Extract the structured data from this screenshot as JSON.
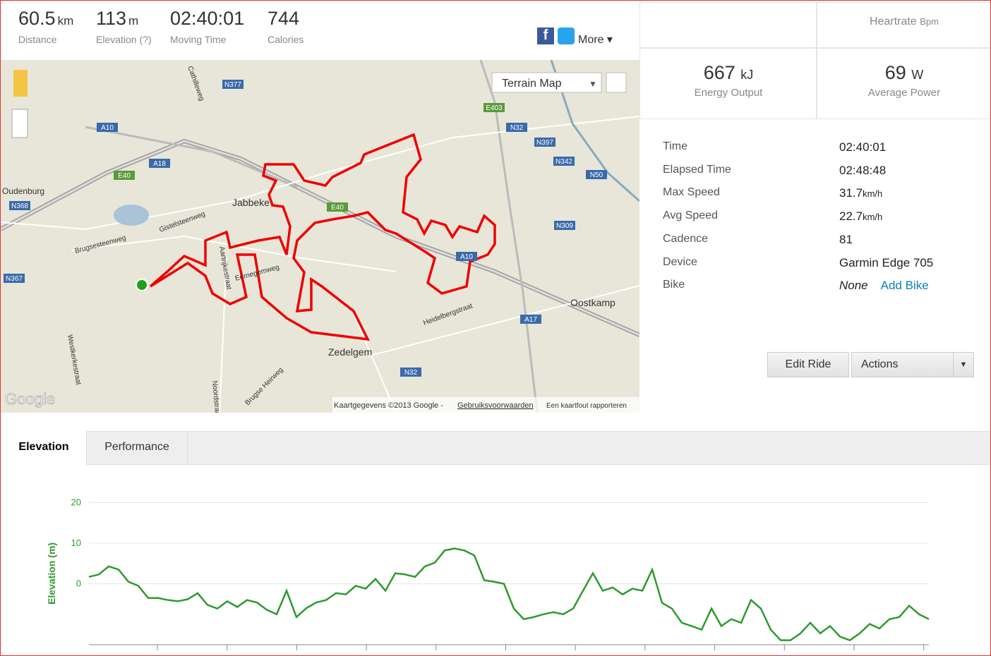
{
  "header": {
    "stats": [
      {
        "value": "60.5",
        "unit": "km",
        "label": "Distance"
      },
      {
        "value": "113",
        "unit": "m",
        "label": "Elevation (?)"
      },
      {
        "value": "02:40:01",
        "label": "Moving Time"
      },
      {
        "value": "744",
        "label": "Calories"
      }
    ],
    "share": "More"
  },
  "summary": {
    "heartrate": {
      "label": "Heartrate",
      "unit": "Bpm"
    },
    "energy": {
      "value": "667",
      "unit": "kJ",
      "label": "Energy Output"
    },
    "power": {
      "value": "69",
      "unit": "W",
      "label": "Average Power"
    }
  },
  "details": [
    {
      "label": "Time",
      "value": "02:40:01"
    },
    {
      "label": "Elapsed Time",
      "value": "02:48:48"
    },
    {
      "label": "Max Speed",
      "value": "31.7",
      "unit": "km/h"
    },
    {
      "label": "Avg Speed",
      "value": "22.7",
      "unit": "km/h"
    },
    {
      "label": "Cadence",
      "value": "81"
    },
    {
      "label": "Device",
      "value": "Garmin Edge 705"
    },
    {
      "label": "Bike",
      "value": "None",
      "link": "Add Bike"
    }
  ],
  "buttons": {
    "edit": "Edit Ride",
    "actions": "Actions"
  },
  "map": {
    "type_selector": "Terrain Map",
    "labels": [
      "Oudenburg",
      "N368",
      "N367",
      "A10",
      "E40",
      "A18",
      "N377",
      "Cathilleweg",
      "Jabbeke",
      "Gistelsteenweg",
      "Brugsesteenweg",
      "Aartrijkestraat",
      "Eernegemweg",
      "Zedelgem",
      "N32",
      "Heidelbergstraat",
      "A17",
      "E403",
      "Oostkamp",
      "N50",
      "N309",
      "N397",
      "N342",
      "Westkerkestraat",
      "Noordstraat",
      "Brugse Heirweg",
      "A10",
      "E40",
      "N32"
    ],
    "attribution": "Kaartgegevens ©2013 Google -",
    "terms": "Gebruiksvoorwaarden",
    "report": "Een kaartfout rapporteren",
    "logo": "Google"
  },
  "tabs": [
    "Elevation",
    "Performance"
  ],
  "chart_data": {
    "type": "line",
    "y_label": "Elevation (m)",
    "color": "#2e9a2e",
    "ylim": [
      -15,
      22
    ],
    "yticks": [
      0,
      10,
      20
    ],
    "grid": true,
    "values": [
      1.7,
      2.3,
      4.3,
      3.5,
      0.5,
      -0.5,
      -3.5,
      -3.5,
      -4,
      -4.3,
      -3.8,
      -2.3,
      -5.2,
      -6.1,
      -4.3,
      -5.7,
      -4,
      -4.6,
      -6.4,
      -7.5,
      -1.7,
      -8.2,
      -6,
      -4.6,
      -4,
      -2.3,
      -2.6,
      -0.5,
      -1.2,
      1.2,
      -1.7,
      2.6,
      2.3,
      1.7,
      4.3,
      5.2,
      8.2,
      8.7,
      8.2,
      7,
      0.9,
      0.5,
      0,
      -6.1,
      -8.7,
      -8.2,
      -7.5,
      -7,
      -7.5,
      -6.1,
      -1.7,
      2.6,
      -1.7,
      -0.9,
      -2.6,
      -1.2,
      -1.7,
      3.5,
      -4.7,
      -6.1,
      -9.6,
      -10.4,
      -11.3,
      -6.1,
      -10.4,
      -8.7,
      -9.6,
      -4,
      -6.1,
      -11.3,
      -13.9,
      -13.9,
      -12.2,
      -9.6,
      -12.2,
      -10.4,
      -13,
      -13.9,
      -12.2,
      -9.9,
      -11,
      -8.7,
      -8.2,
      -5.4,
      -7.5,
      -8.7
    ]
  }
}
